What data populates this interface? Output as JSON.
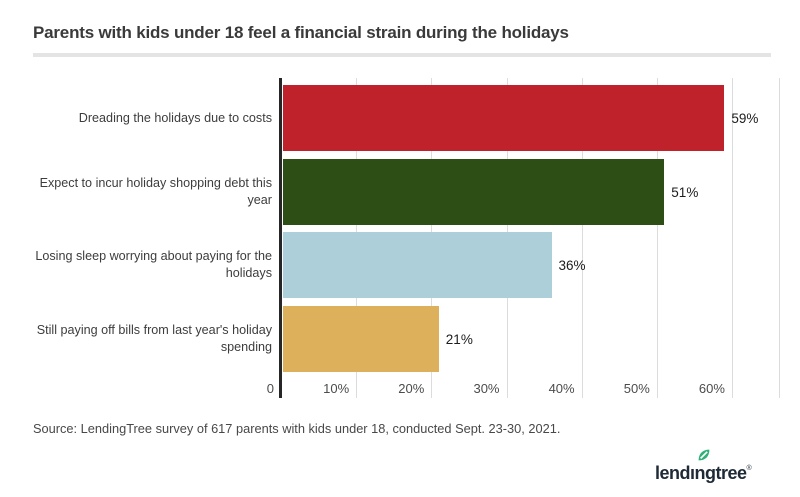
{
  "title": "Parents with kids under 18 feel a financial strain during the holidays",
  "source": "Source: LendingTree survey of 617 parents with kids under 18, conducted Sept. 23-30, 2021.",
  "logo": {
    "brand_prefix": "lend",
    "brand_i": "ı",
    "brand_suffix": "ngtree",
    "registered": "®",
    "leaf_color": "#2FB078",
    "text_color": "#1E2A35"
  },
  "colors": {
    "background": "#FFFFFF",
    "axis_line": "#262626",
    "gridline": "#DCDCDC",
    "divider": "#E4E4E4",
    "title_text": "#3A3A3A",
    "category_text": "#3D3D3D",
    "tick_text": "#4C4C4C",
    "value_text": "#1C1C1C",
    "source_text": "#484848"
  },
  "chart_data": {
    "type": "bar",
    "orientation": "horizontal",
    "title": "Parents with kids under 18 feel a financial strain during the holidays",
    "categories": [
      "Dreading the holidays due to costs",
      "Expect to incur holiday shopping debt this year",
      "Losing sleep worrying about paying for the holidays",
      "Still paying off bills from last year's holiday spending"
    ],
    "values": [
      59,
      51,
      36,
      21
    ],
    "value_labels": [
      "59%",
      "51%",
      "36%",
      "21%"
    ],
    "bar_colors": [
      "#BF222A",
      "#2D4F15",
      "#ACCFDA",
      "#DDB05C"
    ],
    "x_ticks": [
      {
        "v": 0,
        "label": "0"
      },
      {
        "v": 10,
        "label": "10%"
      },
      {
        "v": 20,
        "label": "20%"
      },
      {
        "v": 30,
        "label": "30%"
      },
      {
        "v": 40,
        "label": "40%"
      },
      {
        "v": 50,
        "label": "50%"
      },
      {
        "v": 60,
        "label": "60%"
      }
    ],
    "xlim": [
      0,
      66.4
    ],
    "xlabel": "",
    "ylabel": "",
    "grid": "vertical, behind bars",
    "legend": "none",
    "value_label_position": "outside-end"
  }
}
